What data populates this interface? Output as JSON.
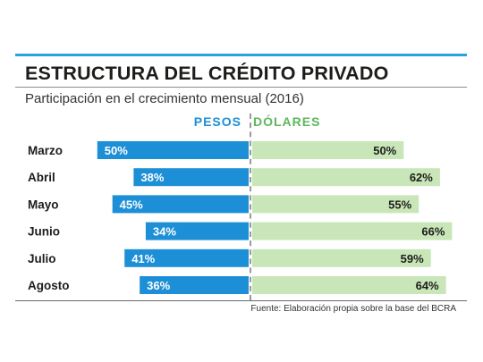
{
  "header": {
    "title": "ESTRUCTURA DEL CRÉDITO PRIVADO",
    "subtitle": "Participación en el crecimiento mensual (2016)"
  },
  "legend": {
    "pesos": "PESOS",
    "dolares": "DÓLARES"
  },
  "colors": {
    "accent_rule": "#29a3e0",
    "pesos": "#1d8fd6",
    "dolares": "#c8e6b8",
    "pesos_legend": "#1d8fd6",
    "dolares_legend": "#5cb85c"
  },
  "footer": {
    "source": "Fuente: Elaboración propia sobre la base del BCRA"
  },
  "chart_data": {
    "type": "bar",
    "orientation": "horizontal-diverging",
    "title": "ESTRUCTURA DEL CRÉDITO PRIVADO",
    "subtitle": "Participación en el crecimiento mensual (2016)",
    "categories": [
      "Marzo",
      "Abril",
      "Mayo",
      "Junio",
      "Julio",
      "Agosto"
    ],
    "series": [
      {
        "name": "PESOS",
        "values": [
          50,
          38,
          45,
          34,
          41,
          36
        ],
        "labels": [
          "50%",
          "38%",
          "45%",
          "34%",
          "41%",
          "36%"
        ]
      },
      {
        "name": "DÓLARES",
        "values": [
          50,
          62,
          55,
          66,
          59,
          64
        ],
        "labels": [
          "50%",
          "62%",
          "55%",
          "66%",
          "59%",
          "64%"
        ]
      }
    ],
    "unit": "%",
    "xlim": [
      0,
      100
    ]
  }
}
